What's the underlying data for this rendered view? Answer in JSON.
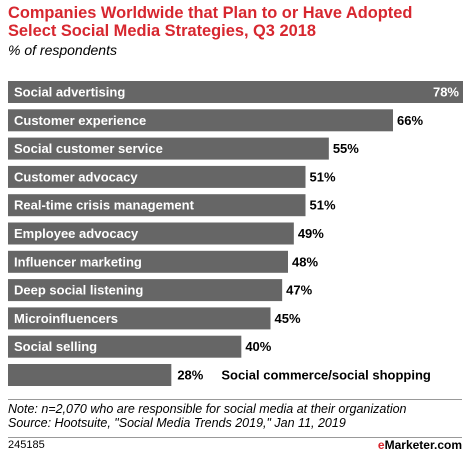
{
  "header": {
    "title": "Companies Worldwide that Plan to or Have Adopted Select Social Media Strategies, Q3 2018",
    "subtitle": "% of respondents"
  },
  "chart_data": {
    "type": "bar",
    "orientation": "horizontal",
    "categories": [
      "Social advertising",
      "Customer experience",
      "Social customer service",
      "Customer advocacy",
      "Real-time crisis management",
      "Employee advocacy",
      "Influencer marketing",
      "Deep social listening",
      "Microinfluencers",
      "Social selling",
      "Social commerce/social shopping"
    ],
    "values": [
      78,
      66,
      55,
      51,
      51,
      49,
      48,
      47,
      45,
      40,
      28
    ],
    "value_labels": [
      "78%",
      "66%",
      "55%",
      "51%",
      "51%",
      "49%",
      "48%",
      "47%",
      "45%",
      "40%",
      "28%"
    ],
    "xlim": [
      0,
      78
    ],
    "bar_color": "#666666",
    "label_color": "#ffffff",
    "grid": false,
    "legend": "none"
  },
  "footer": {
    "note": "Note: n=2,070 who are responsible for social media at their organization",
    "source": "Source: Hootsuite, \"Social Media Trends 2019,\" Jan 11, 2019",
    "chart_id": "245185",
    "brand_prefix": "e",
    "brand_name": "Marketer",
    "brand_suffix": ".com"
  }
}
